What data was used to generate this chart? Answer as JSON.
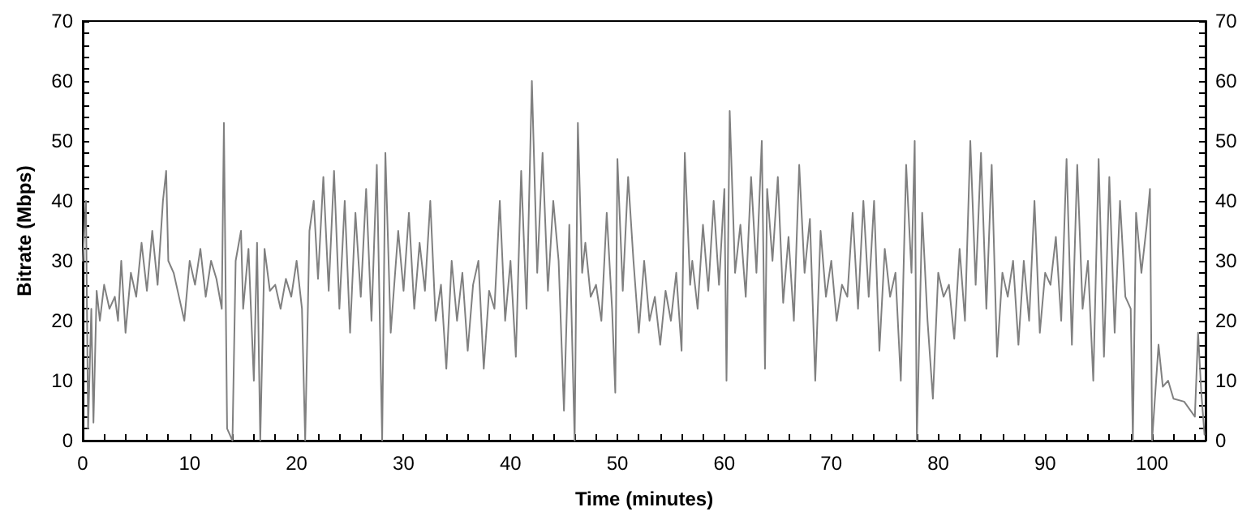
{
  "chart_data": {
    "type": "line",
    "xlabel": "Time (minutes)",
    "ylabel": "Bitrate (Mbps)",
    "xlim": [
      0,
      105
    ],
    "ylim": [
      0,
      70
    ],
    "y2lim": [
      0,
      70
    ],
    "xticks": [
      0,
      {
        "value": 2,
        "label": null
      },
      {
        "value": 4,
        "label": null
      },
      {
        "value": 6,
        "label": null
      },
      {
        "value": 8,
        "label": null
      },
      10,
      {
        "value": 12,
        "label": null
      },
      {
        "value": 14,
        "label": null
      },
      {
        "value": 16,
        "label": null
      },
      {
        "value": 18,
        "label": null
      },
      20,
      {
        "value": 22,
        "label": null
      },
      {
        "value": 24,
        "label": null
      },
      {
        "value": 26,
        "label": null
      },
      {
        "value": 28,
        "label": null
      },
      30,
      {
        "value": 32,
        "label": null
      },
      {
        "value": 34,
        "label": null
      },
      {
        "value": 36,
        "label": null
      },
      {
        "value": 38,
        "label": null
      },
      40,
      {
        "value": 42,
        "label": null
      },
      {
        "value": 44,
        "label": null
      },
      {
        "value": 46,
        "label": null
      },
      {
        "value": 48,
        "label": null
      },
      50,
      {
        "value": 52,
        "label": null
      },
      {
        "value": 54,
        "label": null
      },
      {
        "value": 56,
        "label": null
      },
      {
        "value": 58,
        "label": null
      },
      60,
      {
        "value": 62,
        "label": null
      },
      {
        "value": 64,
        "label": null
      },
      {
        "value": 66,
        "label": null
      },
      {
        "value": 68,
        "label": null
      },
      70,
      {
        "value": 72,
        "label": null
      },
      {
        "value": 74,
        "label": null
      },
      {
        "value": 76,
        "label": null
      },
      {
        "value": 78,
        "label": null
      },
      80,
      {
        "value": 82,
        "label": null
      },
      {
        "value": 84,
        "label": null
      },
      {
        "value": 86,
        "label": null
      },
      {
        "value": 88,
        "label": null
      },
      90,
      {
        "value": 92,
        "label": null
      },
      {
        "value": 94,
        "label": null
      },
      {
        "value": 96,
        "label": null
      },
      {
        "value": 98,
        "label": null
      },
      100,
      {
        "value": 102,
        "label": null
      },
      {
        "value": 104,
        "label": null
      }
    ],
    "yticks": [
      0,
      {
        "value": 2,
        "label": null
      },
      {
        "value": 4,
        "label": null
      },
      {
        "value": 6,
        "label": null
      },
      {
        "value": 8,
        "label": null
      },
      10,
      {
        "value": 12,
        "label": null
      },
      {
        "value": 14,
        "label": null
      },
      {
        "value": 16,
        "label": null
      },
      {
        "value": 18,
        "label": null
      },
      20,
      {
        "value": 22,
        "label": null
      },
      {
        "value": 24,
        "label": null
      },
      {
        "value": 26,
        "label": null
      },
      {
        "value": 28,
        "label": null
      },
      30,
      {
        "value": 32,
        "label": null
      },
      {
        "value": 34,
        "label": null
      },
      {
        "value": 36,
        "label": null
      },
      {
        "value": 38,
        "label": null
      },
      40,
      {
        "value": 42,
        "label": null
      },
      {
        "value": 44,
        "label": null
      },
      {
        "value": 46,
        "label": null
      },
      {
        "value": 48,
        "label": null
      },
      50,
      {
        "value": 52,
        "label": null
      },
      {
        "value": 54,
        "label": null
      },
      {
        "value": 56,
        "label": null
      },
      {
        "value": 58,
        "label": null
      },
      60,
      {
        "value": 62,
        "label": null
      },
      {
        "value": 64,
        "label": null
      },
      {
        "value": 66,
        "label": null
      },
      {
        "value": 68,
        "label": null
      },
      70
    ],
    "y2ticks": [
      0,
      {
        "value": 2,
        "label": null
      },
      {
        "value": 4,
        "label": null
      },
      {
        "value": 6,
        "label": null
      },
      {
        "value": 8,
        "label": null
      },
      10,
      {
        "value": 12,
        "label": null
      },
      {
        "value": 14,
        "label": null
      },
      {
        "value": 16,
        "label": null
      },
      {
        "value": 18,
        "label": null
      },
      20,
      {
        "value": 22,
        "label": null
      },
      {
        "value": 24,
        "label": null
      },
      {
        "value": 26,
        "label": null
      },
      {
        "value": 28,
        "label": null
      },
      30,
      {
        "value": 32,
        "label": null
      },
      {
        "value": 34,
        "label": null
      },
      {
        "value": 36,
        "label": null
      },
      {
        "value": 38,
        "label": null
      },
      40,
      {
        "value": 42,
        "label": null
      },
      {
        "value": 44,
        "label": null
      },
      {
        "value": 46,
        "label": null
      },
      {
        "value": 48,
        "label": null
      },
      50,
      {
        "value": 52,
        "label": null
      },
      {
        "value": 54,
        "label": null
      },
      {
        "value": 56,
        "label": null
      },
      {
        "value": 58,
        "label": null
      },
      60,
      {
        "value": 62,
        "label": null
      },
      {
        "value": 64,
        "label": null
      },
      {
        "value": 66,
        "label": null
      },
      {
        "value": 68,
        "label": null
      },
      70
    ],
    "grid": false,
    "marker": "none",
    "line_style": "solid",
    "series": [
      {
        "color": "#808080",
        "x": [
          0,
          0.3,
          0.5,
          0.8,
          1.0,
          1.3,
          1.6,
          2,
          2.5,
          3,
          3.3,
          3.6,
          4,
          4.5,
          5,
          5.5,
          6,
          6.5,
          7,
          7.5,
          7.8,
          8,
          8.5,
          9,
          9.5,
          10,
          10.5,
          11,
          11.5,
          12,
          12.5,
          13,
          13.2,
          13.5,
          14,
          14.3,
          14.8,
          15,
          15.5,
          16,
          16.3,
          16.6,
          17,
          17.5,
          18,
          18.5,
          19,
          19.5,
          20,
          20.5,
          20.8,
          21.2,
          21.6,
          22,
          22.5,
          23,
          23.5,
          24,
          24.5,
          25,
          25.5,
          26,
          26.5,
          27,
          27.5,
          28,
          28.3,
          28.8,
          29.5,
          30,
          30.5,
          31,
          31.5,
          32,
          32.5,
          33,
          33.5,
          34,
          34.5,
          35,
          35.5,
          36,
          36.5,
          37,
          37.5,
          38,
          38.5,
          39,
          39.5,
          40,
          40.5,
          41,
          41.5,
          42,
          42.5,
          43,
          43.5,
          44,
          44.5,
          45,
          45.5,
          46,
          46.3,
          46.7,
          47,
          47.5,
          48,
          48.5,
          49,
          49.5,
          49.8,
          50,
          50.5,
          51,
          51.5,
          52,
          52.5,
          53,
          53.5,
          54,
          54.5,
          55,
          55.5,
          56,
          56.3,
          56.8,
          57,
          57.5,
          58,
          58.5,
          59,
          59.5,
          60,
          60.2,
          60.5,
          61,
          61.5,
          62,
          62.5,
          63,
          63.5,
          63.8,
          64,
          64.5,
          65,
          65.5,
          66,
          66.5,
          67,
          67.5,
          68,
          68.5,
          69,
          69.5,
          70,
          70.5,
          71,
          71.5,
          72,
          72.5,
          73,
          73.5,
          74,
          74.5,
          75,
          75.5,
          76,
          76.5,
          77,
          77.5,
          77.8,
          78,
          78.5,
          79,
          79.5,
          80,
          80.5,
          81,
          81.5,
          82,
          82.5,
          83,
          83.5,
          84,
          84.5,
          85,
          85.5,
          86,
          86.5,
          87,
          87.5,
          88,
          88.5,
          89,
          89.5,
          90,
          90.5,
          91,
          91.5,
          92,
          92.5,
          93,
          93.5,
          94,
          94.5,
          95,
          95.5,
          96,
          96.5,
          97,
          97.5,
          98,
          98.2,
          98.5,
          99,
          99.5,
          99.8,
          100,
          100.3,
          100.6,
          101,
          101.5,
          102,
          103,
          104,
          104.3,
          104.6,
          104.9
        ],
        "values": [
          30,
          40,
          2,
          22,
          3,
          25,
          20,
          26,
          22,
          24,
          20,
          30,
          18,
          28,
          24,
          33,
          25,
          35,
          26,
          40,
          45,
          30,
          28,
          24,
          20,
          30,
          26,
          32,
          24,
          30,
          27,
          22,
          53,
          2,
          0,
          30,
          35,
          22,
          32,
          10,
          33,
          0,
          32,
          25,
          26,
          22,
          27,
          24,
          30,
          22,
          0,
          35,
          40,
          27,
          44,
          25,
          45,
          22,
          40,
          18,
          38,
          24,
          42,
          20,
          46,
          0,
          48,
          18,
          35,
          25,
          38,
          22,
          33,
          25,
          40,
          20,
          26,
          12,
          30,
          20,
          28,
          15,
          26,
          30,
          12,
          25,
          22,
          40,
          20,
          30,
          14,
          45,
          22,
          60,
          28,
          48,
          25,
          40,
          30,
          5,
          36,
          0,
          53,
          28,
          33,
          24,
          26,
          20,
          38,
          22,
          8,
          47,
          25,
          44,
          30,
          18,
          30,
          20,
          24,
          16,
          25,
          20,
          28,
          15,
          48,
          26,
          30,
          22,
          36,
          25,
          40,
          26,
          42,
          10,
          55,
          28,
          36,
          24,
          44,
          28,
          50,
          12,
          42,
          30,
          44,
          23,
          34,
          20,
          46,
          28,
          37,
          10,
          35,
          24,
          30,
          20,
          26,
          24,
          38,
          22,
          40,
          24,
          40,
          15,
          32,
          24,
          28,
          10,
          46,
          28,
          50,
          0,
          38,
          20,
          7,
          28,
          24,
          26,
          17,
          32,
          20,
          50,
          26,
          48,
          22,
          46,
          14,
          28,
          24,
          30,
          16,
          30,
          20,
          40,
          18,
          28,
          26,
          34,
          20,
          47,
          16,
          46,
          22,
          30,
          10,
          47,
          14,
          44,
          18,
          40,
          24,
          22,
          0,
          38,
          28,
          36,
          42,
          0,
          8,
          16,
          9,
          10,
          7,
          6.5,
          4,
          18,
          8,
          1
        ]
      }
    ]
  }
}
